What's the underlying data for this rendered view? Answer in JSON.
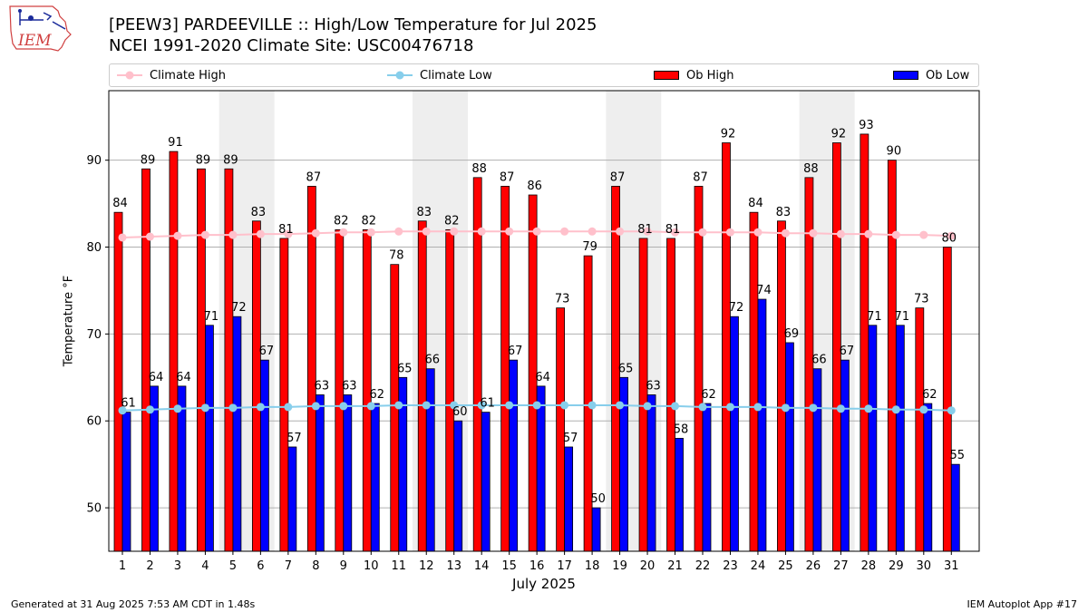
{
  "header": {
    "title_line1": "[PEEW3] PARDEEVILLE :: High/Low Temperature for Jul 2025",
    "title_line2": "NCEI 1991-2020 Climate Site: USC00476718",
    "logo_text": "IEM"
  },
  "footer": {
    "generated": "Generated at 31 Aug 2025 7:53 AM CDT in 1.48s",
    "app": "IEM Autoplot App #17"
  },
  "colors": {
    "ob_high": "#ff0000",
    "ob_low": "#0000ff",
    "climate_high": "#ffc0cb",
    "climate_low": "#87ceeb",
    "weekend_shade": "#eeeeee",
    "grid": "#b0b0b0"
  },
  "chart_data": {
    "type": "bar",
    "xlabel": "July 2025",
    "ylabel": "Temperature °F",
    "ylim": [
      45,
      98
    ],
    "yticks": [
      50,
      60,
      70,
      80,
      90
    ],
    "grid": "horizontal",
    "legend_position": "top",
    "categories": [
      "1",
      "2",
      "3",
      "4",
      "5",
      "6",
      "7",
      "8",
      "9",
      "10",
      "11",
      "12",
      "13",
      "14",
      "15",
      "16",
      "17",
      "18",
      "19",
      "20",
      "21",
      "22",
      "23",
      "24",
      "25",
      "26",
      "27",
      "28",
      "29",
      "30",
      "31"
    ],
    "weekend_days": [
      5,
      6,
      12,
      13,
      19,
      20,
      26,
      27
    ],
    "series": [
      {
        "name": "Ob High",
        "kind": "bar",
        "values": [
          84,
          89,
          91,
          89,
          89,
          83,
          81,
          87,
          82,
          82,
          78,
          83,
          82,
          88,
          87,
          86,
          73,
          79,
          87,
          81,
          81,
          87,
          92,
          84,
          83,
          88,
          92,
          93,
          90,
          73,
          80
        ]
      },
      {
        "name": "Ob Low",
        "kind": "bar",
        "values": [
          61,
          64,
          64,
          71,
          72,
          67,
          57,
          63,
          63,
          62,
          65,
          66,
          60,
          61,
          67,
          64,
          57,
          50,
          65,
          63,
          58,
          62,
          72,
          74,
          69,
          66,
          67,
          71,
          71,
          62,
          55
        ]
      },
      {
        "name": "Climate High",
        "kind": "line",
        "values": [
          81.1,
          81.2,
          81.3,
          81.4,
          81.4,
          81.5,
          81.5,
          81.6,
          81.7,
          81.7,
          81.8,
          81.8,
          81.8,
          81.8,
          81.8,
          81.8,
          81.8,
          81.8,
          81.8,
          81.8,
          81.7,
          81.7,
          81.7,
          81.7,
          81.6,
          81.6,
          81.5,
          81.5,
          81.4,
          81.4,
          81.3
        ]
      },
      {
        "name": "Climate Low",
        "kind": "line",
        "values": [
          61.2,
          61.3,
          61.4,
          61.5,
          61.5,
          61.6,
          61.6,
          61.7,
          61.7,
          61.7,
          61.8,
          61.8,
          61.8,
          61.8,
          61.8,
          61.8,
          61.8,
          61.8,
          61.8,
          61.7,
          61.7,
          61.6,
          61.6,
          61.6,
          61.5,
          61.5,
          61.4,
          61.4,
          61.3,
          61.3,
          61.2
        ]
      }
    ]
  }
}
